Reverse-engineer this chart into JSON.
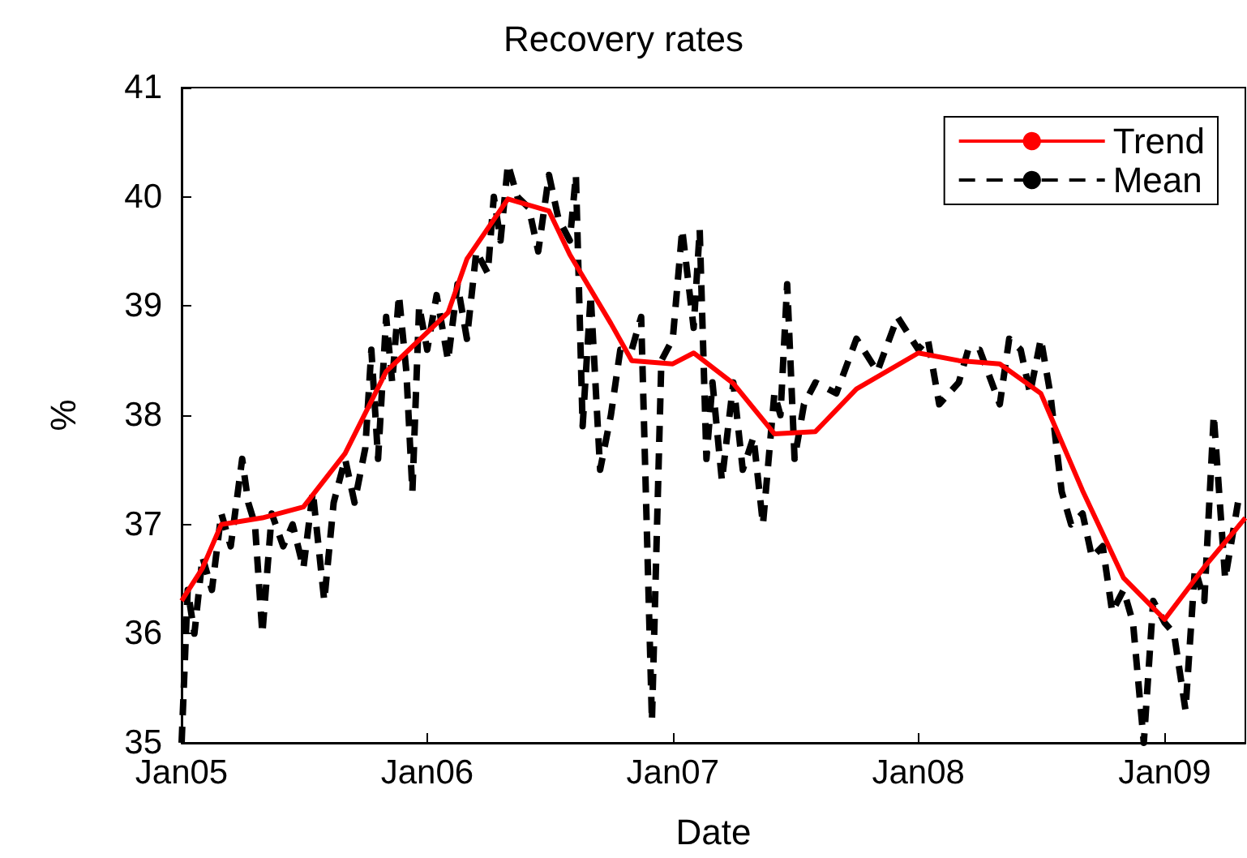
{
  "chart_data": {
    "type": "line",
    "title": "Recovery rates",
    "xlabel": "Date",
    "ylabel": "%",
    "xlim": [
      "2005-01",
      "2009-05"
    ],
    "xticks": [
      {
        "value": "2005-01",
        "label": "Jan05"
      },
      {
        "value": "2006-01",
        "label": "Jan06"
      },
      {
        "value": "2007-01",
        "label": "Jan07"
      },
      {
        "value": "2008-01",
        "label": "Jan08"
      },
      {
        "value": "2009-01",
        "label": "Jan09"
      }
    ],
    "ylim": [
      35,
      41
    ],
    "yticks": [
      35,
      36,
      37,
      38,
      39,
      40,
      41
    ],
    "grid": false,
    "legend": "top right",
    "marker": "none",
    "series": [
      {
        "name": "Trend",
        "color": "#ff0000",
        "line_style": "solid",
        "x": [
          "2005-01",
          "2005-02",
          "2005-03",
          "2005-05",
          "2005-07",
          "2005-09",
          "2005-11",
          "2006-02",
          "2006-03",
          "2006-05",
          "2006-07",
          "2006-08",
          "2006-10",
          "2006-11",
          "2007-01",
          "2007-02",
          "2007-04",
          "2007-06",
          "2007-08",
          "2007-10",
          "2008-01",
          "2008-03",
          "2008-05",
          "2008-07",
          "2008-09",
          "2008-11",
          "2009-01",
          "2009-03",
          "2009-05"
        ],
        "values": [
          36.3,
          36.6,
          37.0,
          37.06,
          37.16,
          37.65,
          38.4,
          38.94,
          39.43,
          39.98,
          39.87,
          39.47,
          38.84,
          38.5,
          38.47,
          38.57,
          38.29,
          37.83,
          37.85,
          38.24,
          38.57,
          38.5,
          38.47,
          38.2,
          37.31,
          36.51,
          36.13,
          36.61,
          37.06
        ]
      },
      {
        "name": "Mean",
        "color": "#000000",
        "line_style": "dashed",
        "x": [
          "2005-01-01",
          "2005-01-10",
          "2005-01-20",
          "2005-02-01",
          "2005-02-15",
          "2005-03-01",
          "2005-03-15",
          "2005-04-01",
          "2005-04-10",
          "2005-04-20",
          "2005-05-01",
          "2005-05-15",
          "2005-06-01",
          "2005-06-15",
          "2005-07-01",
          "2005-07-15",
          "2005-08-01",
          "2005-08-15",
          "2005-09-01",
          "2005-09-15",
          "2005-10-01",
          "2005-10-10",
          "2005-10-20",
          "2005-11-01",
          "2005-11-10",
          "2005-11-20",
          "2005-12-01",
          "2005-12-10",
          "2005-12-20",
          "2006-01-01",
          "2006-01-15",
          "2006-02-01",
          "2006-02-15",
          "2006-03-01",
          "2006-03-15",
          "2006-04-01",
          "2006-04-10",
          "2006-04-20",
          "2006-05-01",
          "2006-05-15",
          "2006-06-01",
          "2006-06-15",
          "2006-07-01",
          "2006-07-15",
          "2006-08-01",
          "2006-08-10",
          "2006-08-20",
          "2006-09-01",
          "2006-09-15",
          "2006-10-01",
          "2006-10-15",
          "2006-11-01",
          "2006-11-15",
          "2006-12-01",
          "2006-12-15",
          "2007-01-01",
          "2007-01-15",
          "2007-02-01",
          "2007-02-10",
          "2007-02-20",
          "2007-03-01",
          "2007-03-15",
          "2007-04-01",
          "2007-04-15",
          "2007-05-01",
          "2007-05-15",
          "2007-06-01",
          "2007-06-10",
          "2007-06-20",
          "2007-07-01",
          "2007-07-15",
          "2007-08-01",
          "2007-09-01",
          "2007-10-01",
          "2007-11-01",
          "2007-12-01",
          "2008-01-01",
          "2008-01-15",
          "2008-02-01",
          "2008-03-01",
          "2008-03-15",
          "2008-04-01",
          "2008-05-01",
          "2008-05-15",
          "2008-06-01",
          "2008-06-15",
          "2008-07-01",
          "2008-07-15",
          "2008-08-01",
          "2008-08-15",
          "2008-09-01",
          "2008-09-15",
          "2008-10-01",
          "2008-10-15",
          "2008-11-01",
          "2008-11-15",
          "2008-12-01",
          "2008-12-15",
          "2009-01-01",
          "2009-01-15",
          "2009-02-01",
          "2009-02-15",
          "2009-03-01",
          "2009-03-15",
          "2009-04-01",
          "2009-04-20"
        ],
        "values": [
          35.0,
          36.4,
          36.0,
          36.7,
          36.4,
          37.1,
          36.8,
          37.6,
          37.2,
          37.0,
          36.0,
          37.1,
          36.8,
          37.0,
          36.6,
          37.3,
          36.3,
          37.2,
          37.6,
          37.2,
          37.7,
          38.6,
          37.6,
          38.9,
          38.3,
          39.1,
          38.4,
          37.3,
          39.0,
          38.6,
          39.1,
          38.5,
          39.2,
          38.7,
          39.5,
          39.3,
          40.0,
          39.6,
          40.3,
          40.0,
          39.9,
          39.5,
          40.2,
          39.8,
          39.6,
          40.2,
          37.9,
          39.1,
          37.5,
          38.0,
          38.6,
          38.6,
          38.9,
          35.2,
          38.5,
          38.7,
          39.7,
          38.8,
          39.7,
          37.6,
          38.3,
          37.4,
          38.3,
          37.5,
          37.8,
          37.0,
          38.2,
          38.0,
          39.2,
          37.6,
          38.1,
          38.3,
          38.2,
          38.7,
          38.4,
          38.9,
          38.6,
          38.7,
          38.1,
          38.3,
          38.6,
          38.6,
          38.1,
          38.7,
          38.6,
          38.2,
          38.7,
          38.2,
          37.3,
          37.0,
          37.1,
          36.7,
          36.8,
          36.2,
          36.4,
          36.1,
          35.0,
          36.3,
          36.1,
          36.0,
          35.3,
          36.6,
          36.3,
          38.0,
          36.5,
          37.2
        ]
      }
    ]
  }
}
